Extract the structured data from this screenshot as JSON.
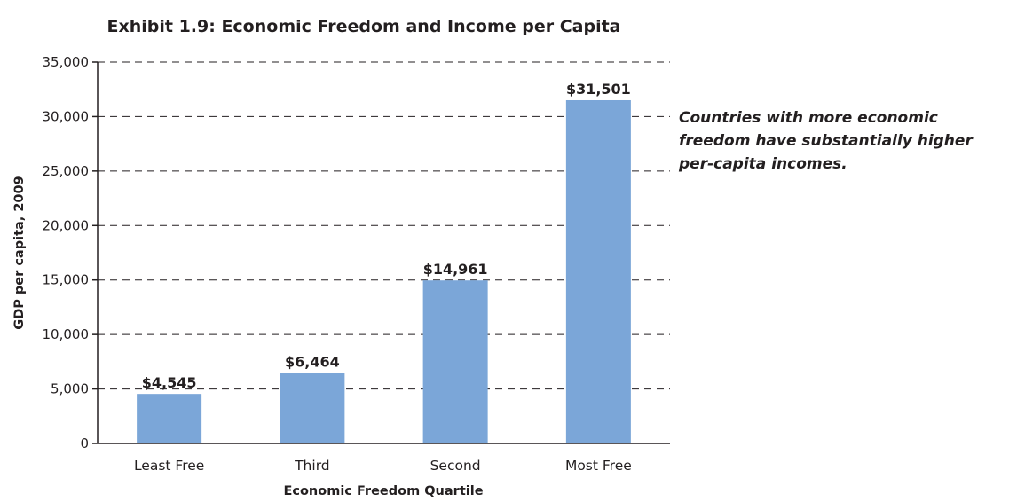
{
  "chart_data": {
    "type": "bar",
    "title": "Exhibit 1.9: Economic Freedom and Income per Capita",
    "xlabel": "Economic Freedom Quartile",
    "ylabel": "GDP per capita, 2009",
    "categories": [
      "Least Free",
      "Third",
      "Second",
      "Most Free"
    ],
    "values": [
      4545,
      6464,
      14961,
      31501
    ],
    "data_labels": [
      "$4,545",
      "$6,464",
      "$14,961",
      "$31,501"
    ],
    "ylim": [
      0,
      35000
    ],
    "yticks": [
      0,
      5000,
      10000,
      15000,
      20000,
      25000,
      30000,
      35000
    ],
    "ytick_labels": [
      "0",
      "5,000",
      "10,000",
      "15,000",
      "20,000",
      "25,000",
      "30,000",
      "35,000"
    ],
    "grid": "dashed horizontal",
    "bar_color": "#7ba6d8"
  },
  "annotation": {
    "text_lines": [
      "Countries with more economic",
      "freedom have substantially higher",
      "per-capita incomes."
    ]
  }
}
